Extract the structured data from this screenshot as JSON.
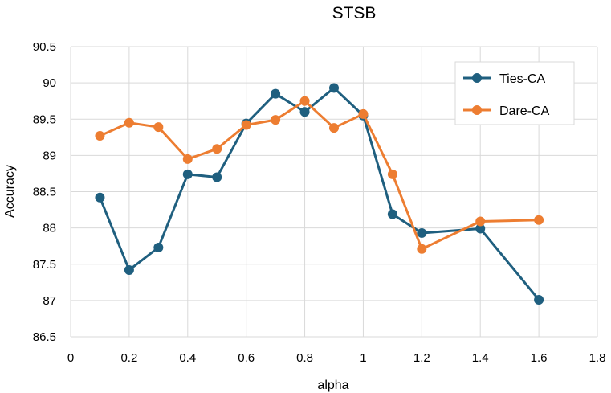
{
  "chart_data": {
    "type": "line",
    "title": "STSB",
    "xlabel": "alpha",
    "ylabel": "Accuracy",
    "xlim": [
      0,
      1.8
    ],
    "ylim": [
      86.5,
      90.5
    ],
    "xticks": [
      0,
      0.2,
      0.4,
      0.6,
      0.8,
      1,
      1.2,
      1.4,
      1.6,
      1.8
    ],
    "yticks": [
      86.5,
      87,
      87.5,
      88,
      88.5,
      89,
      89.5,
      90,
      90.5
    ],
    "grid": true,
    "legend_position": "top-right",
    "series": [
      {
        "name": "Ties-CA",
        "color": "#1f5f7f",
        "x": [
          0.1,
          0.2,
          0.3,
          0.4,
          0.5,
          0.6,
          0.7,
          0.8,
          0.9,
          1.0,
          1.1,
          1.2,
          1.4,
          1.6
        ],
        "values": [
          88.42,
          87.42,
          87.73,
          88.74,
          88.7,
          89.44,
          89.85,
          89.6,
          89.93,
          89.55,
          88.19,
          87.93,
          87.99,
          87.01
        ]
      },
      {
        "name": "Dare-CA",
        "color": "#ed7d31",
        "x": [
          0.1,
          0.2,
          0.3,
          0.4,
          0.5,
          0.6,
          0.7,
          0.8,
          0.9,
          1.0,
          1.1,
          1.2,
          1.4,
          1.6
        ],
        "values": [
          89.27,
          89.45,
          89.39,
          88.95,
          89.09,
          89.42,
          89.49,
          89.75,
          89.38,
          89.57,
          88.74,
          87.71,
          88.09,
          88.11
        ]
      }
    ]
  }
}
